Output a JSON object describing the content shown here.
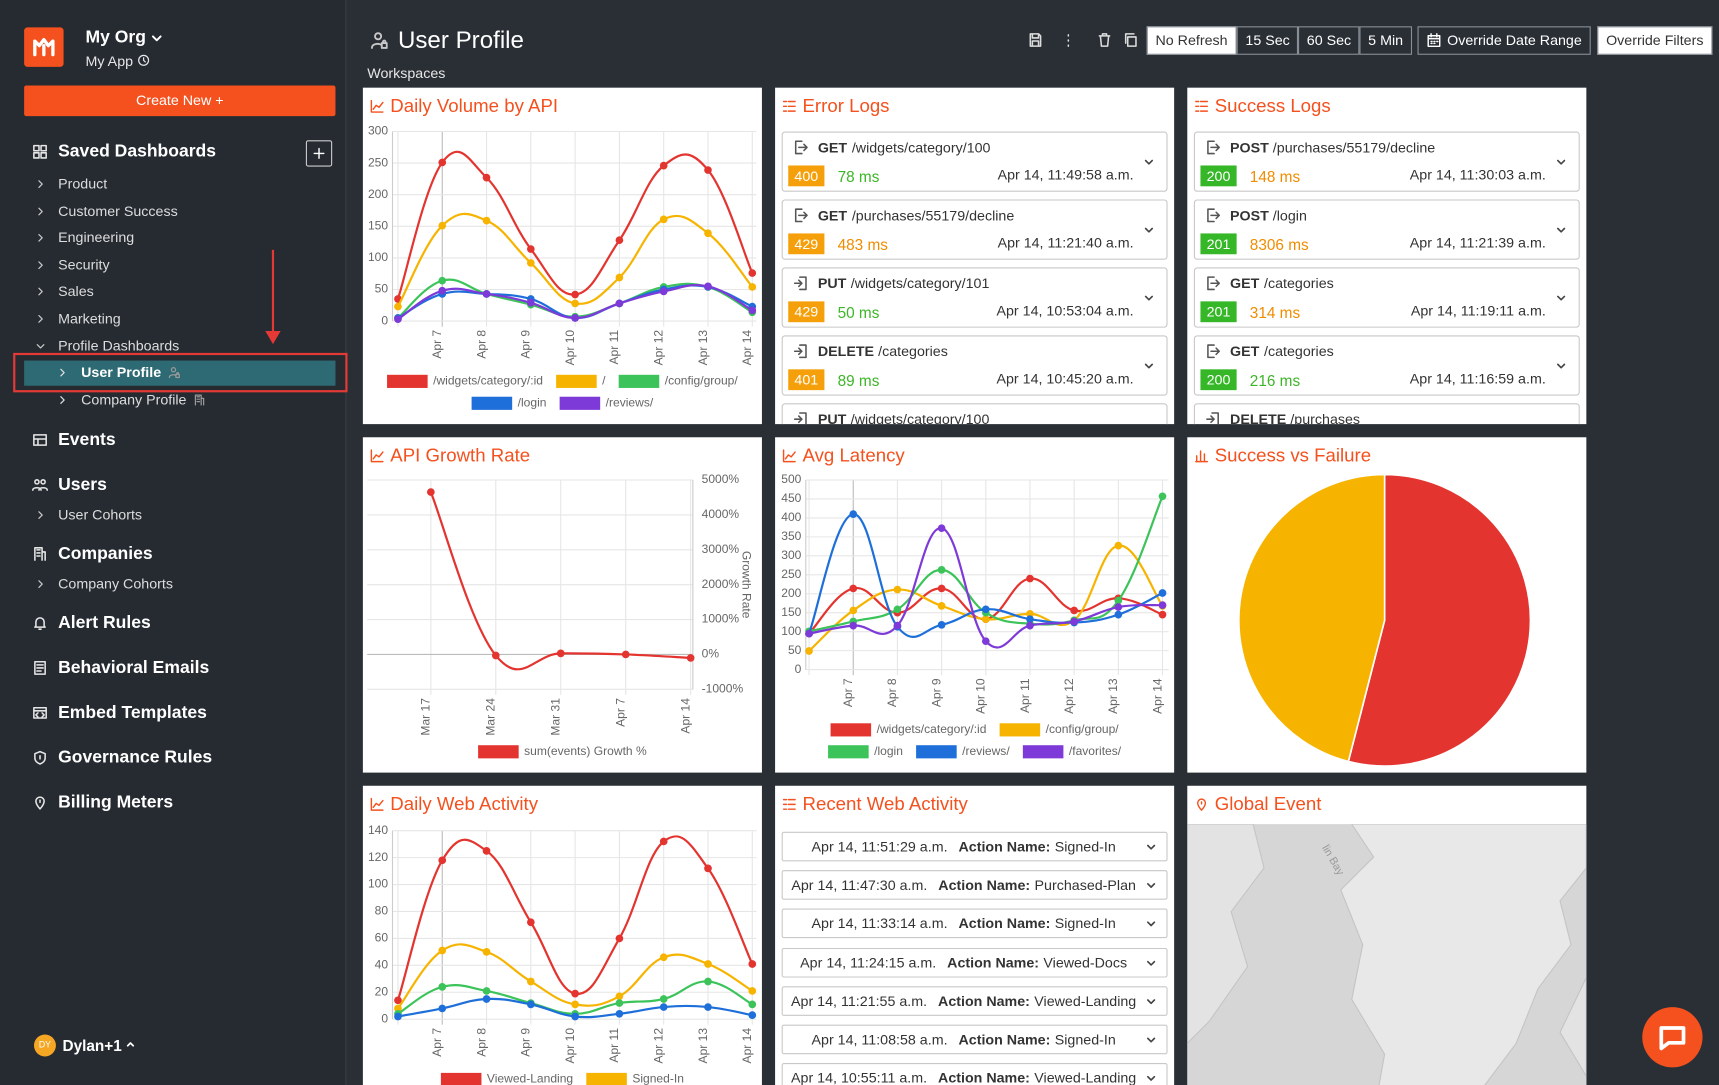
{
  "sidebar": {
    "org": "My Org",
    "app": "My App",
    "create_button": "Create New +",
    "saved_dashboards": "Saved Dashboards",
    "dashboards": [
      "Product",
      "Customer Success",
      "Engineering",
      "Security",
      "Sales",
      "Marketing",
      "Profile Dashboards"
    ],
    "profile_dashboards": [
      "User Profile",
      "Company Profile"
    ],
    "selected": "User Profile",
    "nav": [
      {
        "label": "Events"
      },
      {
        "label": "Users",
        "items": [
          "User Cohorts"
        ]
      },
      {
        "label": "Companies",
        "items": [
          "Company Cohorts"
        ]
      },
      {
        "label": "Alert Rules"
      },
      {
        "label": "Behavioral Emails"
      },
      {
        "label": "Embed Templates"
      },
      {
        "label": "Governance Rules"
      },
      {
        "label": "Billing Meters"
      }
    ],
    "avatar": "DY",
    "user": "Dylan+1"
  },
  "header": {
    "title": "User Profile",
    "workspaces": "Workspaces",
    "refresh": {
      "options": [
        "No Refresh",
        "15 Sec",
        "60 Sec",
        "5 Min"
      ],
      "selected": 0
    },
    "date_range": "Override Date Range",
    "filters": "Override Filters"
  },
  "widgets": {
    "daily_volume": {
      "title": "Daily Volume by API",
      "chart_data": {
        "type": "line",
        "categories": [
          null,
          "Apr 7",
          "Apr 8",
          "Apr 9",
          "Apr 10",
          "Apr 11",
          "Apr 12",
          "Apr 13",
          "Apr 14"
        ],
        "series": [
          {
            "name": "/widgets/category/:id",
            "color": "#e3342f",
            "values": [
              35,
              251,
              227,
              114,
              42,
              128,
              246,
              239,
              76
            ]
          },
          {
            "name": "/",
            "color": "#f6b400",
            "values": [
              23,
              151,
              159,
              92,
              28,
              69,
              161,
              139,
              54
            ]
          },
          {
            "name": "/config/group/",
            "color": "#3cc35a",
            "values": [
              5,
              64,
              43,
              26,
              7,
              28,
              54,
              54,
              14
            ]
          },
          {
            "name": "/login",
            "color": "#1e6fd9",
            "values": [
              5,
              43,
              43,
              35,
              5,
              28,
              50,
              54,
              23
            ]
          },
          {
            "name": "/reviews/",
            "color": "#7e3ad8",
            "values": [
              3,
              48,
              43,
              29,
              5,
              28,
              47,
              55,
              17
            ]
          }
        ],
        "ylim": [
          0,
          300
        ],
        "yticks": [
          0,
          50,
          100,
          150,
          200,
          250,
          300
        ],
        "grid": true,
        "legend": "bottom"
      }
    },
    "error_logs": {
      "title": "Error Logs",
      "entries": [
        {
          "method": "GET",
          "path": "/widgets/category/100",
          "status": "400",
          "latency": "78 ms",
          "latency_color": "#3cb527",
          "time": "Apr 14, 11:49:58 a.m."
        },
        {
          "method": "GET",
          "path": "/purchases/55179/decline",
          "status": "429",
          "latency": "483 ms",
          "latency_color": "#f08c00",
          "time": "Apr 14, 11:21:40 a.m."
        },
        {
          "method": "PUT",
          "path": "/widgets/category/101",
          "status": "429",
          "latency": "50 ms",
          "latency_color": "#3cb527",
          "time": "Apr 14, 10:53:04 a.m."
        },
        {
          "method": "DELETE",
          "path": "/categories",
          "status": "401",
          "latency": "89 ms",
          "latency_color": "#3cb527",
          "time": "Apr 14, 10:45:20 a.m."
        },
        {
          "method": "PUT",
          "path": "/widgets/category/100"
        }
      ]
    },
    "success_logs": {
      "title": "Success Logs",
      "entries": [
        {
          "method": "POST",
          "path": "/purchases/55179/decline",
          "status": "200",
          "latency": "148 ms",
          "latency_color": "#f08c00",
          "time": "Apr 14, 11:30:03 a.m."
        },
        {
          "method": "POST",
          "path": "/login",
          "status": "201",
          "latency": "8306 ms",
          "latency_color": "#f08c00",
          "time": "Apr 14, 11:21:39 a.m."
        },
        {
          "method": "GET",
          "path": "/categories",
          "status": "201",
          "latency": "314 ms",
          "latency_color": "#f08c00",
          "time": "Apr 14, 11:19:11 a.m."
        },
        {
          "method": "GET",
          "path": "/categories",
          "status": "200",
          "latency": "216 ms",
          "latency_color": "#3cb527",
          "time": "Apr 14, 11:16:59 a.m."
        },
        {
          "method": "DELETE",
          "path": "/purchases"
        }
      ]
    },
    "growth": {
      "title": "API Growth Rate",
      "chart_data": {
        "type": "line",
        "categories": [
          "Mar 17",
          "Mar 24",
          "Mar 31",
          "Apr 7",
          "Apr 14"
        ],
        "series": [
          {
            "name": "sum(events)  Growth %",
            "color": "#e3342f",
            "axis": "y2",
            "values": [
              4654,
              -30,
              30,
              0,
              -100
            ]
          }
        ],
        "y2lim": [
          -1000,
          5000
        ],
        "y2ticks": [
          {
            "value": -1000,
            "label": "-1000%"
          },
          {
            "value": 0,
            "label": "0%"
          },
          {
            "value": 1000,
            "label": "1000%"
          },
          {
            "value": 2000,
            "label": "2000%"
          },
          {
            "value": 3000,
            "label": "3000%"
          },
          {
            "value": 4000,
            "label": "4000%"
          },
          {
            "value": 5000,
            "label": "5000%"
          }
        ],
        "y2label": "Growth Rate",
        "grid": true,
        "legend": "bottom"
      }
    },
    "latency": {
      "title": "Avg Latency",
      "chart_data": {
        "type": "line",
        "categories": [
          null,
          "Apr 7",
          "Apr 8",
          "Apr 9",
          "Apr 10",
          "Apr 11",
          "Apr 12",
          "Apr 13",
          "Apr 14"
        ],
        "series": [
          {
            "name": "/widgets/category/:id",
            "color": "#e3342f",
            "values": [
              95,
              214,
              150,
              214,
              133,
              240,
              156,
              188,
              145
            ]
          },
          {
            "name": "/config/group/",
            "color": "#f6b400",
            "values": [
              49,
              156,
              211,
              168,
              133,
              147,
              130,
              327,
              168
            ]
          },
          {
            "name": "/login",
            "color": "#3cc35a",
            "values": [
              101,
              127,
              159,
              263,
              150,
              121,
              130,
              182,
              457
            ]
          },
          {
            "name": "/reviews/",
            "color": "#1e6fd9",
            "values": [
              95,
              410,
              113,
              118,
              159,
              133,
              124,
              145,
              202
            ]
          },
          {
            "name": "/favorites/",
            "color": "#7e3ad8",
            "values": [
              95,
              116,
              116,
              373,
              75,
              116,
              127,
              165,
              170
            ]
          }
        ],
        "ylim": [
          0,
          500
        ],
        "yticks": [
          0,
          50,
          100,
          150,
          200,
          250,
          300,
          350,
          400,
          450,
          500
        ],
        "grid": true,
        "legend": "bottom"
      }
    },
    "success_failure": {
      "title": "Success vs Failure",
      "chart_data": {
        "type": "pie",
        "values": [
          54,
          46
        ],
        "colors": [
          "#e3342f",
          "#f6b400"
        ]
      }
    },
    "web_activity": {
      "title": "Daily Web Activity",
      "chart_data": {
        "type": "line",
        "categories": [
          null,
          "Apr 7",
          "Apr 8",
          "Apr 9",
          "Apr 10",
          "Apr 11",
          "Apr 12",
          "Apr 13",
          "Apr 14"
        ],
        "series": [
          {
            "name": "Viewed-Landing",
            "color": "#e3342f",
            "values": [
              14,
              118,
              125,
              72,
              19,
              60,
              132,
              112,
              41
            ]
          },
          {
            "name": "Signed-In",
            "color": "#f6b400",
            "values": [
              8,
              51,
              50,
              28,
              11,
              17,
              46,
              41,
              21
            ]
          },
          {
            "color": "#3cc35a",
            "values": [
              4,
              24,
              21,
              12,
              4,
              12,
              15,
              28,
              11
            ]
          },
          {
            "color": "#1e6fd9",
            "values": [
              2,
              8,
              15,
              11,
              2,
              4,
              9,
              9,
              3
            ]
          }
        ],
        "ylim": [
          0,
          140
        ],
        "yticks": [
          0,
          20,
          40,
          60,
          80,
          100,
          120,
          140
        ],
        "grid": true,
        "legend": "bottom"
      }
    },
    "recent_activity": {
      "title": "Recent Web Activity",
      "entries": [
        {
          "time": "Apr 14, 11:51:29 a.m.",
          "label": "Action Name:",
          "value": "Signed-In"
        },
        {
          "time": "Apr 14, 11:47:30 a.m.",
          "label": "Action Name:",
          "value": "Purchased-Plan"
        },
        {
          "time": "Apr 14, 11:33:14 a.m.",
          "label": "Action Name:",
          "value": "Signed-In"
        },
        {
          "time": "Apr 14, 11:24:15 a.m.",
          "label": "Action Name:",
          "value": "Viewed-Docs"
        },
        {
          "time": "Apr 14, 11:21:55 a.m.",
          "label": "Action Name:",
          "value": "Viewed-Landing"
        },
        {
          "time": "Apr 14, 11:08:58 a.m.",
          "label": "Action Name:",
          "value": "Signed-In"
        },
        {
          "time": "Apr 14, 10:55:11 a.m.",
          "label": "Action Name:",
          "value": "Viewed-Landing"
        }
      ]
    },
    "global_event": {
      "title": "Global Event",
      "map_label": "lin Bay"
    }
  }
}
